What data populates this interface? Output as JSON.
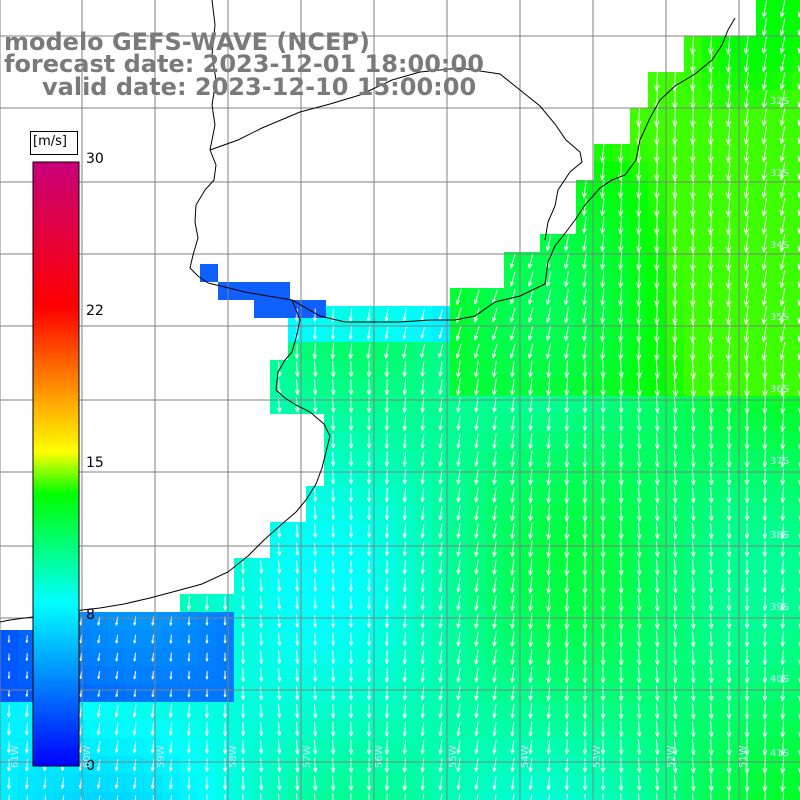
{
  "title": {
    "line1": "modelo GEFS-WAVE (NCEP)",
    "line2": "forecast date: 2023-12-01 18:00:00",
    "line3": "valid date: 2023-12-10 15:00:00"
  },
  "colorbar": {
    "units": "[m/s]",
    "ticks": [
      "30",
      "22",
      "15",
      "8",
      "0"
    ],
    "min": 0,
    "max": 30,
    "colors": [
      "#0000ff",
      "#00ffff",
      "#00ff00",
      "#ffff00",
      "#ff0000",
      "#c8007a"
    ]
  },
  "map": {
    "land_color": "#ffffff",
    "grid_color": "#808080",
    "coast_color": "#000000",
    "arrow_color": "#ffffff",
    "lat_labels": [
      "32S",
      "33S",
      "34S",
      "35S",
      "36S",
      "37S",
      "38S",
      "39S",
      "40S",
      "41S"
    ],
    "lon_labels": [
      "61W",
      "60W",
      "59W",
      "58W",
      "57W",
      "56W",
      "55W",
      "54W",
      "53W",
      "52W",
      "51W"
    ]
  }
}
